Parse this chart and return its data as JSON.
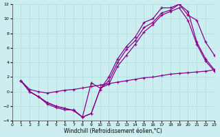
{
  "xlabel": "Windchill (Refroidissement éolien,°C)",
  "bg_color": "#cceef0",
  "grid_color": "#aadddd",
  "line_color": "#880088",
  "xlim": [
    0,
    23
  ],
  "ylim": [
    -4,
    12
  ],
  "xticks": [
    0,
    1,
    2,
    3,
    4,
    5,
    6,
    7,
    8,
    9,
    10,
    11,
    12,
    13,
    14,
    15,
    16,
    17,
    18,
    19,
    20,
    21,
    22,
    23
  ],
  "yticks": [
    -4,
    -2,
    0,
    2,
    4,
    6,
    8,
    10,
    12
  ],
  "line1_x": [
    1,
    2,
    3,
    4,
    5,
    6,
    7,
    8,
    9,
    10,
    11,
    12,
    13,
    14,
    15,
    16,
    17,
    18,
    19,
    20,
    21,
    22,
    23
  ],
  "line1_y": [
    1.5,
    0.0,
    -0.7,
    -1.5,
    -2.0,
    -2.3,
    -2.6,
    -3.5,
    -3.0,
    0.3,
    2.0,
    4.5,
    6.2,
    7.5,
    9.5,
    10.0,
    11.5,
    11.5,
    12.0,
    10.5,
    9.8,
    6.8,
    5.0
  ],
  "line2_x": [
    1,
    2,
    3,
    4,
    5,
    6,
    7,
    8,
    9,
    10,
    11,
    12,
    13,
    14,
    15,
    16,
    17,
    18,
    19,
    20,
    21,
    22,
    23
  ],
  "line2_y": [
    1.5,
    0.0,
    -0.7,
    -1.5,
    -2.0,
    -2.3,
    -2.6,
    -3.5,
    -3.0,
    0.3,
    1.5,
    4.0,
    5.8,
    7.0,
    8.8,
    9.5,
    10.8,
    11.2,
    12.0,
    11.0,
    6.8,
    4.5,
    3.0
  ],
  "line3_x": [
    1,
    2,
    3,
    4,
    5,
    6,
    7,
    8,
    9,
    10,
    11,
    12,
    13,
    14,
    15,
    16,
    17,
    18,
    19,
    20,
    21,
    22,
    23
  ],
  "line3_y": [
    1.5,
    0.0,
    -0.7,
    -1.7,
    -2.2,
    -2.5,
    -2.5,
    -3.5,
    1.2,
    0.5,
    1.0,
    3.5,
    5.0,
    6.5,
    8.2,
    9.2,
    10.5,
    11.0,
    11.5,
    9.8,
    6.5,
    4.2,
    2.8
  ],
  "line4_x": [
    1,
    2,
    3,
    4,
    5,
    6,
    7,
    8,
    9,
    10,
    11,
    12,
    13,
    14,
    15,
    16,
    17,
    18,
    19,
    20,
    21,
    22,
    23
  ],
  "line4_y": [
    1.5,
    0.3,
    0.0,
    -0.2,
    0.0,
    0.2,
    0.3,
    0.5,
    0.7,
    0.9,
    1.1,
    1.3,
    1.5,
    1.7,
    1.9,
    2.0,
    2.2,
    2.4,
    2.5,
    2.6,
    2.7,
    2.8,
    3.0
  ],
  "marker": "+",
  "markersize": 3,
  "linewidth": 0.9,
  "axis_fontsize": 5.5,
  "tick_fontsize": 4.5
}
